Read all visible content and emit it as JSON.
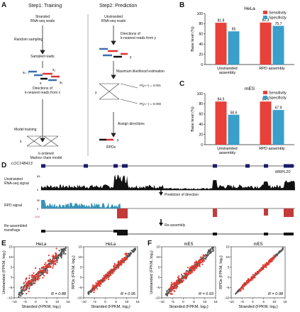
{
  "panels": {
    "A": {
      "label": "A",
      "step1_title": "Step1: Training",
      "step2_title": "Step2: Prediction",
      "step1": {
        "stranded_reads": "Stranded\nRNA-seq reads",
        "random_sampling": "Random sampling",
        "sampled_reads": "Sampled reads",
        "directions_x": "Directions of\nk-nearest reads from x",
        "model_training": "Model training",
        "markov": "k-ordered\nMarkov chain model",
        "x_label": "x",
        "x1": "x₁",
        "x2": "x₂",
        "xk1": "xₖ₋₁",
        "xk": "xₖ"
      },
      "step2": {
        "unstranded_reads": "Unstranded\nRNA-seq reads",
        "directions_y": "Directions of\nk-nearest reads from y",
        "mle": "Maximum likelihood estimation",
        "p_plus": "P(y=+) = 0.001",
        "p_minus": "P(y=−) = 0.008",
        "assign": "Assign directions",
        "rpds": "RPDs",
        "y_label": "y"
      }
    },
    "B": {
      "label": "B",
      "cell": "HeLa",
      "ylabel": "Base level (%)"
    },
    "C": {
      "label": "C",
      "cell": "mES",
      "ylabel": "Base level (%)"
    },
    "D": {
      "label": "D",
      "gene_left": "LOC148413",
      "gene_right": "MRPL20",
      "unstranded_signal": "Unstranded\nRNA-seq signal",
      "rpd_signal": "RPD signal",
      "reassembled": "Re-assembled\ntransfrags",
      "prediction": "Prediction of direction",
      "reassembly": "Re-assembly",
      "axis_0": "0",
      "axis_85": "85",
      "axis_50": "50",
      "axis_neg100": "-100"
    },
    "E": {
      "label": "E"
    },
    "F": {
      "label": "F"
    }
  },
  "legend": {
    "sensitivity": "Sensitivity",
    "specificity": "Specificity"
  },
  "colors": {
    "sensitivity": "#e8413a",
    "specificity": "#3a9fc9",
    "track_black": "#111111",
    "rpd_blue": "#3a93b8",
    "rpd_red": "#c23a3a",
    "scatter_gray": "#555555",
    "scatter_red": "#e53a2f"
  },
  "chart_data": [
    {
      "type": "bar",
      "title": "HeLa",
      "categories": [
        "Unstranded\nassembly",
        "RPD assembly"
      ],
      "series": [
        {
          "name": "Sensitivity",
          "values": [
            81.8,
            82.3
          ]
        },
        {
          "name": "Specificity",
          "values": [
            65,
            75.7
          ]
        }
      ],
      "ylabel": "Base level (%)",
      "ylim": [
        0,
        100
      ],
      "yticks": [
        "0",
        "20",
        "40",
        "60",
        "80",
        "100"
      ],
      "legend": "top-right"
    },
    {
      "type": "bar",
      "title": "mES",
      "categories": [
        "Unstranded\nassembly",
        "RPD assembly"
      ],
      "series": [
        {
          "name": "Sensitivity",
          "values": [
            84.5,
            84.5
          ]
        },
        {
          "name": "Specificity",
          "values": [
            58.6,
            67.9
          ]
        }
      ],
      "ylabel": "Base level (%)",
      "ylim": [
        0,
        100
      ],
      "yticks": [
        "0",
        "20",
        "40",
        "60",
        "80",
        "100"
      ],
      "legend": "top-right"
    },
    {
      "type": "scatter",
      "title": "HeLa",
      "xlabel": "Stranded (FPKM, log₂)",
      "ylabel": "Unstranded (FPKM, log₂)",
      "annotation": "R = 0.88",
      "xlim": [
        -10,
        15
      ],
      "ylim": [
        -10,
        15
      ],
      "xticks": [
        "−10",
        "−5",
        "0",
        "5",
        "10",
        "15"
      ],
      "yticks": [
        "−10",
        "−5",
        "0",
        "5",
        "10",
        "15"
      ]
    },
    {
      "type": "scatter",
      "title": "HeLa",
      "xlabel": "Stranded (FPKM, log₂)",
      "ylabel": "RPDs (FPKM, log₂)",
      "annotation": "R = 0.95",
      "xlim": [
        -10,
        15
      ],
      "ylim": [
        -10,
        15
      ],
      "xticks": [
        "−10",
        "−5",
        "0",
        "5",
        "10",
        "15"
      ],
      "yticks": [
        "−10",
        "−5",
        "0",
        "5",
        "10",
        "15"
      ]
    },
    {
      "type": "scatter",
      "title": "mES",
      "xlabel": "Stranded (FPKM, log₂)",
      "ylabel": "Unstranded (FPKM, log₂)",
      "annotation": "R = 0.93",
      "xlim": [
        -10,
        15
      ],
      "ylim": [
        -10,
        15
      ],
      "xticks": [
        "−10",
        "−5",
        "0",
        "5",
        "10",
        "15"
      ],
      "yticks": [
        "−10",
        "−5",
        "0",
        "5",
        "10",
        "15"
      ]
    },
    {
      "type": "scatter",
      "title": "mES",
      "xlabel": "Stranded (FPKM, log₂)",
      "ylabel": "RPDs (FPKM, log₂)",
      "annotation": "R = 0.98",
      "xlim": [
        -10,
        15
      ],
      "ylim": [
        -10,
        15
      ],
      "xticks": [
        "−10",
        "−5",
        "0",
        "5",
        "10",
        "15"
      ],
      "yticks": [
        "−10",
        "−5",
        "0",
        "5",
        "10",
        "15"
      ]
    }
  ]
}
